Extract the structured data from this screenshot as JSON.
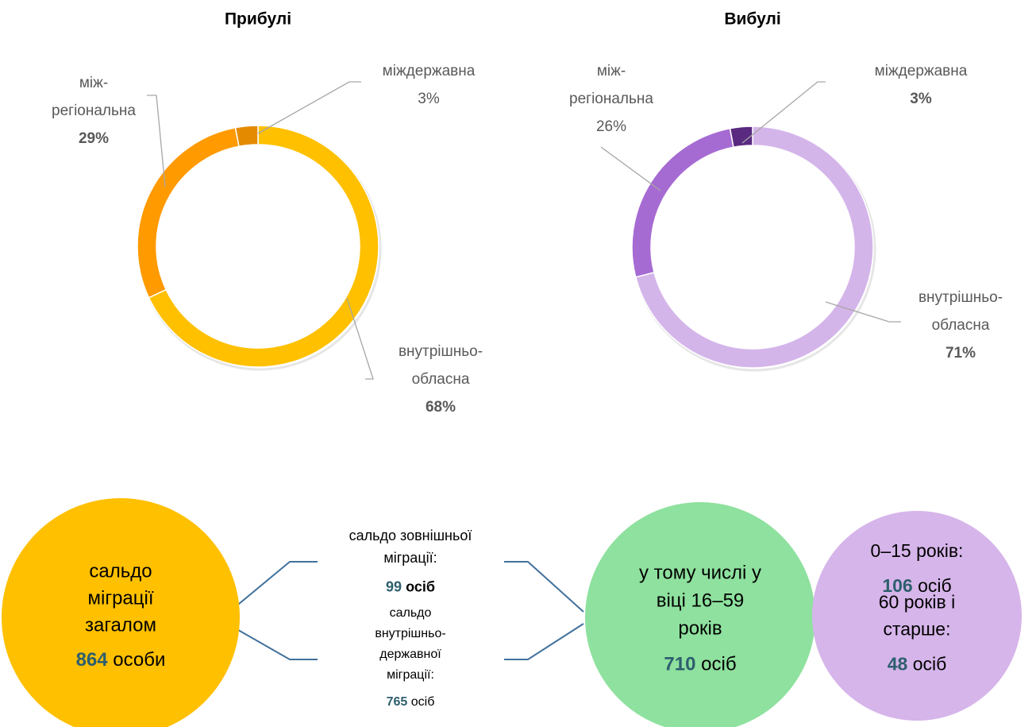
{
  "chart_data": [
    {
      "type": "pie",
      "title": "Прибулі",
      "categories": [
        [
          "внутрішньо-",
          "обласна"
        ],
        [
          "між-",
          "регіональна"
        ],
        [
          "міждержавна"
        ]
      ],
      "values": [
        68,
        29,
        3
      ],
      "value_labels": [
        "68%",
        "29%",
        "3%"
      ],
      "colors": [
        "#FFC000",
        "#FF9A00",
        "#E48A00"
      ]
    },
    {
      "type": "pie",
      "title": "Вибулі",
      "categories": [
        [
          "внутрішньо-",
          "обласна"
        ],
        [
          "між-",
          "регіональна"
        ],
        [
          "міждержавна"
        ]
      ],
      "values": [
        71,
        26,
        3
      ],
      "value_labels": [
        "71%",
        "26%",
        "3%"
      ],
      "colors": [
        "#D4B5EA",
        "#A66BD3",
        "#5A2A80"
      ]
    }
  ],
  "summary": {
    "total": {
      "label": [
        "сальдо",
        "міграції",
        "загалом"
      ],
      "value": 864,
      "unit": "особи"
    },
    "external": {
      "label": [
        "сальдо зовнішньої",
        "міграції:"
      ],
      "value": 99,
      "unit": "осіб"
    },
    "internal": {
      "label": [
        "сальдо",
        "внутрішньо-",
        "державної",
        "міграції:"
      ],
      "value": 765,
      "unit": "осіб"
    },
    "working_age": {
      "label": [
        "у тому числі у",
        "віці 16–59",
        "років"
      ],
      "value": 710,
      "unit": "осіб"
    },
    "age_groups": [
      {
        "label": [
          "0–15 років:"
        ],
        "value": 106,
        "unit": "осіб"
      },
      {
        "label": [
          "60 років і",
          "старше:"
        ],
        "value": 48,
        "unit": "осіб"
      }
    ]
  }
}
